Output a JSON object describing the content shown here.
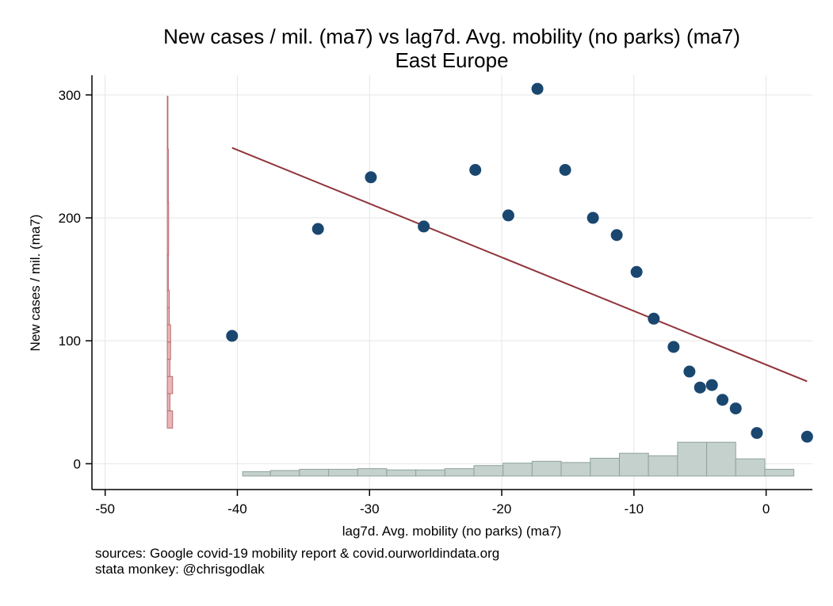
{
  "chart_data": {
    "type": "scatter",
    "title": "New cases / mil. (ma7) vs lag7d. Avg. mobility (no parks) (ma7)",
    "subtitle": "East Europe",
    "xlabel": "lag7d. Avg. mobility (no parks) (ma7)",
    "ylabel": "New cases / mil. (ma7)",
    "xlim": [
      -51,
      3.5
    ],
    "ylim": [
      -21,
      316
    ],
    "x_ticks": [
      -50,
      -40,
      -30,
      -20,
      -10,
      0
    ],
    "y_ticks": [
      0,
      100,
      200,
      300
    ],
    "grid": true,
    "legend": "none",
    "colors": {
      "points": "#1a476f",
      "fit_line": "#90353b",
      "x_hist": "#c5d1cc",
      "x_hist_edge": "#8ea39a",
      "y_hist": "#e8b7b7",
      "y_hist_edge": "#b96b70"
    },
    "series": [
      {
        "type": "scatter",
        "points": [
          [
            -40.4,
            104
          ],
          [
            -33.9,
            191
          ],
          [
            -29.9,
            233
          ],
          [
            -25.9,
            193
          ],
          [
            -22.0,
            239
          ],
          [
            -19.5,
            202
          ],
          [
            -17.3,
            305
          ],
          [
            -15.2,
            239
          ],
          [
            -13.1,
            200
          ],
          [
            -11.3,
            186
          ],
          [
            -9.8,
            156
          ],
          [
            -8.5,
            118
          ],
          [
            -7.0,
            95
          ],
          [
            -5.8,
            75
          ],
          [
            -5.0,
            62
          ],
          [
            -4.1,
            64
          ],
          [
            -3.3,
            52
          ],
          [
            -2.3,
            45
          ],
          [
            -0.7,
            25
          ],
          [
            3.1,
            22
          ]
        ]
      },
      {
        "type": "line",
        "points": [
          [
            -40.4,
            257
          ],
          [
            3.1,
            67
          ]
        ]
      }
    ],
    "x_histogram": {
      "baseline": -10,
      "bins": [
        {
          "x0": -39.6,
          "x1": -37.5,
          "top": -6.5
        },
        {
          "x0": -37.5,
          "x1": -35.3,
          "top": -5.5
        },
        {
          "x0": -35.3,
          "x1": -33.1,
          "top": -4.5
        },
        {
          "x0": -33.1,
          "x1": -30.9,
          "top": -4.5
        },
        {
          "x0": -30.9,
          "x1": -28.7,
          "top": -4.0
        },
        {
          "x0": -28.7,
          "x1": -26.5,
          "top": -5.0
        },
        {
          "x0": -26.5,
          "x1": -24.3,
          "top": -5.0
        },
        {
          "x0": -24.3,
          "x1": -22.1,
          "top": -4.0
        },
        {
          "x0": -22.1,
          "x1": -19.9,
          "top": -1.5
        },
        {
          "x0": -19.9,
          "x1": -17.7,
          "top": 0.5
        },
        {
          "x0": -17.7,
          "x1": -15.5,
          "top": 2.0
        },
        {
          "x0": -15.5,
          "x1": -13.3,
          "top": 1.0
        },
        {
          "x0": -13.3,
          "x1": -11.1,
          "top": 4.5
        },
        {
          "x0": -11.1,
          "x1": -8.9,
          "top": 8.5
        },
        {
          "x0": -8.9,
          "x1": -6.7,
          "top": 6.5
        },
        {
          "x0": -6.7,
          "x1": -4.5,
          "top": 17.5
        },
        {
          "x0": -4.5,
          "x1": -2.3,
          "top": 17.5
        },
        {
          "x0": -2.3,
          "x1": -0.1,
          "top": 4.0
        },
        {
          "x0": -0.1,
          "x1": 2.1,
          "top": -4.5
        }
      ]
    },
    "y_histogram": {
      "baseline": -45.3,
      "bins": [
        {
          "y0": 29,
          "y1": 43,
          "right": -44.9
        },
        {
          "y0": 43,
          "y1": 57,
          "right": -45.1
        },
        {
          "y0": 57,
          "y1": 71,
          "right": -44.9
        },
        {
          "y0": 71,
          "y1": 85,
          "right": -45.1
        },
        {
          "y0": 85,
          "y1": 99,
          "right": -45.05
        },
        {
          "y0": 99,
          "y1": 113,
          "right": -45.05
        },
        {
          "y0": 113,
          "y1": 127,
          "right": -45.15
        },
        {
          "y0": 127,
          "y1": 141,
          "right": -45.15
        },
        {
          "y0": 141,
          "y1": 170,
          "right": -45.22
        },
        {
          "y0": 170,
          "y1": 213,
          "right": -45.2
        },
        {
          "y0": 213,
          "y1": 256,
          "right": -45.22
        },
        {
          "y0": 256,
          "y1": 299,
          "right": -45.25
        }
      ]
    }
  },
  "footer": {
    "sources": "sources: Google covid-19 mobility report & covid.ourworldindata.org",
    "credit": "stata monkey: @chrisgodlak"
  }
}
